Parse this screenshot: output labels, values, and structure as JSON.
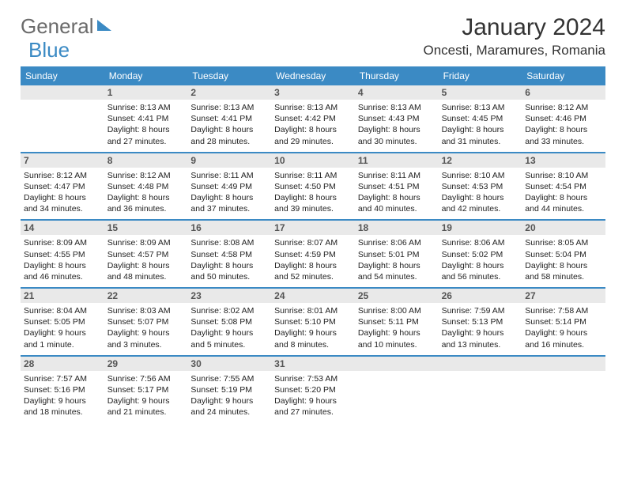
{
  "logo": {
    "word1": "General",
    "word2": "Blue"
  },
  "title": "January 2024",
  "location": "Oncesti, Maramures, Romania",
  "header_bg": "#3b8ac4",
  "text_color": "#222222",
  "daynum_bg": "#e9e9e9",
  "days": [
    "Sunday",
    "Monday",
    "Tuesday",
    "Wednesday",
    "Thursday",
    "Friday",
    "Saturday"
  ],
  "weeks": [
    [
      {
        "n": "",
        "sr": "",
        "ss": "",
        "dl": ""
      },
      {
        "n": "1",
        "sr": "Sunrise: 8:13 AM",
        "ss": "Sunset: 4:41 PM",
        "dl": "Daylight: 8 hours and 27 minutes."
      },
      {
        "n": "2",
        "sr": "Sunrise: 8:13 AM",
        "ss": "Sunset: 4:41 PM",
        "dl": "Daylight: 8 hours and 28 minutes."
      },
      {
        "n": "3",
        "sr": "Sunrise: 8:13 AM",
        "ss": "Sunset: 4:42 PM",
        "dl": "Daylight: 8 hours and 29 minutes."
      },
      {
        "n": "4",
        "sr": "Sunrise: 8:13 AM",
        "ss": "Sunset: 4:43 PM",
        "dl": "Daylight: 8 hours and 30 minutes."
      },
      {
        "n": "5",
        "sr": "Sunrise: 8:13 AM",
        "ss": "Sunset: 4:45 PM",
        "dl": "Daylight: 8 hours and 31 minutes."
      },
      {
        "n": "6",
        "sr": "Sunrise: 8:12 AM",
        "ss": "Sunset: 4:46 PM",
        "dl": "Daylight: 8 hours and 33 minutes."
      }
    ],
    [
      {
        "n": "7",
        "sr": "Sunrise: 8:12 AM",
        "ss": "Sunset: 4:47 PM",
        "dl": "Daylight: 8 hours and 34 minutes."
      },
      {
        "n": "8",
        "sr": "Sunrise: 8:12 AM",
        "ss": "Sunset: 4:48 PM",
        "dl": "Daylight: 8 hours and 36 minutes."
      },
      {
        "n": "9",
        "sr": "Sunrise: 8:11 AM",
        "ss": "Sunset: 4:49 PM",
        "dl": "Daylight: 8 hours and 37 minutes."
      },
      {
        "n": "10",
        "sr": "Sunrise: 8:11 AM",
        "ss": "Sunset: 4:50 PM",
        "dl": "Daylight: 8 hours and 39 minutes."
      },
      {
        "n": "11",
        "sr": "Sunrise: 8:11 AM",
        "ss": "Sunset: 4:51 PM",
        "dl": "Daylight: 8 hours and 40 minutes."
      },
      {
        "n": "12",
        "sr": "Sunrise: 8:10 AM",
        "ss": "Sunset: 4:53 PM",
        "dl": "Daylight: 8 hours and 42 minutes."
      },
      {
        "n": "13",
        "sr": "Sunrise: 8:10 AM",
        "ss": "Sunset: 4:54 PM",
        "dl": "Daylight: 8 hours and 44 minutes."
      }
    ],
    [
      {
        "n": "14",
        "sr": "Sunrise: 8:09 AM",
        "ss": "Sunset: 4:55 PM",
        "dl": "Daylight: 8 hours and 46 minutes."
      },
      {
        "n": "15",
        "sr": "Sunrise: 8:09 AM",
        "ss": "Sunset: 4:57 PM",
        "dl": "Daylight: 8 hours and 48 minutes."
      },
      {
        "n": "16",
        "sr": "Sunrise: 8:08 AM",
        "ss": "Sunset: 4:58 PM",
        "dl": "Daylight: 8 hours and 50 minutes."
      },
      {
        "n": "17",
        "sr": "Sunrise: 8:07 AM",
        "ss": "Sunset: 4:59 PM",
        "dl": "Daylight: 8 hours and 52 minutes."
      },
      {
        "n": "18",
        "sr": "Sunrise: 8:06 AM",
        "ss": "Sunset: 5:01 PM",
        "dl": "Daylight: 8 hours and 54 minutes."
      },
      {
        "n": "19",
        "sr": "Sunrise: 8:06 AM",
        "ss": "Sunset: 5:02 PM",
        "dl": "Daylight: 8 hours and 56 minutes."
      },
      {
        "n": "20",
        "sr": "Sunrise: 8:05 AM",
        "ss": "Sunset: 5:04 PM",
        "dl": "Daylight: 8 hours and 58 minutes."
      }
    ],
    [
      {
        "n": "21",
        "sr": "Sunrise: 8:04 AM",
        "ss": "Sunset: 5:05 PM",
        "dl": "Daylight: 9 hours and 1 minute."
      },
      {
        "n": "22",
        "sr": "Sunrise: 8:03 AM",
        "ss": "Sunset: 5:07 PM",
        "dl": "Daylight: 9 hours and 3 minutes."
      },
      {
        "n": "23",
        "sr": "Sunrise: 8:02 AM",
        "ss": "Sunset: 5:08 PM",
        "dl": "Daylight: 9 hours and 5 minutes."
      },
      {
        "n": "24",
        "sr": "Sunrise: 8:01 AM",
        "ss": "Sunset: 5:10 PM",
        "dl": "Daylight: 9 hours and 8 minutes."
      },
      {
        "n": "25",
        "sr": "Sunrise: 8:00 AM",
        "ss": "Sunset: 5:11 PM",
        "dl": "Daylight: 9 hours and 10 minutes."
      },
      {
        "n": "26",
        "sr": "Sunrise: 7:59 AM",
        "ss": "Sunset: 5:13 PM",
        "dl": "Daylight: 9 hours and 13 minutes."
      },
      {
        "n": "27",
        "sr": "Sunrise: 7:58 AM",
        "ss": "Sunset: 5:14 PM",
        "dl": "Daylight: 9 hours and 16 minutes."
      }
    ],
    [
      {
        "n": "28",
        "sr": "Sunrise: 7:57 AM",
        "ss": "Sunset: 5:16 PM",
        "dl": "Daylight: 9 hours and 18 minutes."
      },
      {
        "n": "29",
        "sr": "Sunrise: 7:56 AM",
        "ss": "Sunset: 5:17 PM",
        "dl": "Daylight: 9 hours and 21 minutes."
      },
      {
        "n": "30",
        "sr": "Sunrise: 7:55 AM",
        "ss": "Sunset: 5:19 PM",
        "dl": "Daylight: 9 hours and 24 minutes."
      },
      {
        "n": "31",
        "sr": "Sunrise: 7:53 AM",
        "ss": "Sunset: 5:20 PM",
        "dl": "Daylight: 9 hours and 27 minutes."
      },
      {
        "n": "",
        "sr": "",
        "ss": "",
        "dl": ""
      },
      {
        "n": "",
        "sr": "",
        "ss": "",
        "dl": ""
      },
      {
        "n": "",
        "sr": "",
        "ss": "",
        "dl": ""
      }
    ]
  ]
}
